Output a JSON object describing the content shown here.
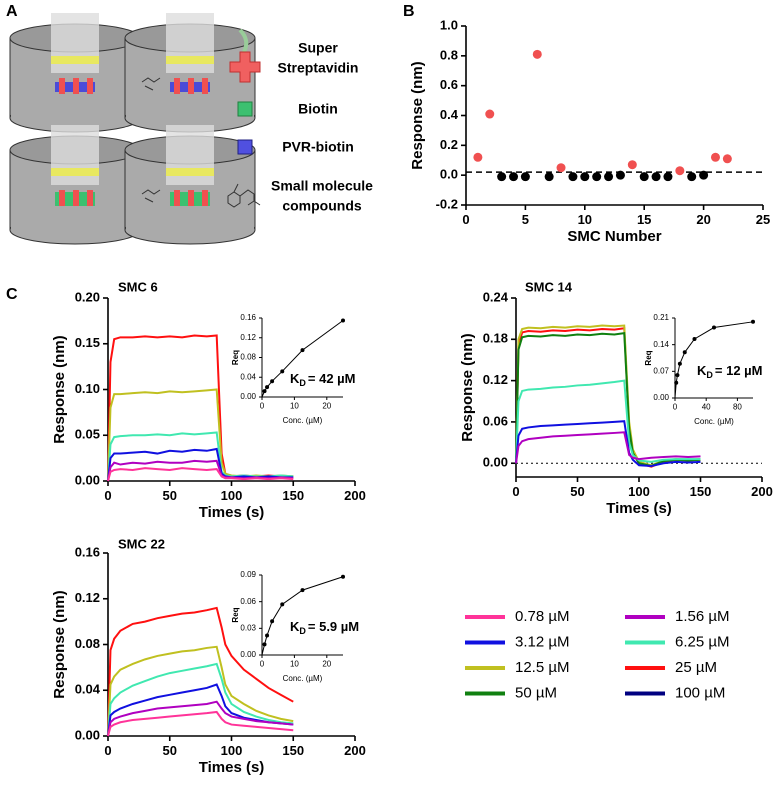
{
  "panels": [
    "A",
    "B",
    "C"
  ],
  "diagram": {
    "labels": [
      "Super",
      "Streptavidin",
      "Biotin",
      "PVR-biotin",
      "Small molecule",
      "compounds"
    ]
  },
  "legend": [
    {
      "name": "0.78 µM",
      "color": "#ff3399"
    },
    {
      "name": "1.56 µM",
      "color": "#b000c0"
    },
    {
      "name": "3.12 µM",
      "color": "#1010e0"
    },
    {
      "name": "6.25 µM",
      "color": "#40e8b0"
    },
    {
      "name": "12.5 µM",
      "color": "#c0c020"
    },
    {
      "name": "25 µM",
      "color": "#ff1010"
    },
    {
      "name": "50 µM",
      "color": "#108010"
    },
    {
      "name": "100 µM",
      "color": "#000080"
    }
  ],
  "chart_data": [
    {
      "type": "scatter",
      "xlabel": "SMC Number",
      "ylabel": "Response (nm)",
      "x": [
        1,
        2,
        3,
        4,
        5,
        6,
        7,
        8,
        9,
        10,
        11,
        12,
        13,
        14,
        15,
        16,
        17,
        18,
        19,
        20,
        21,
        22
      ],
      "values": [
        0.12,
        0.41,
        -0.01,
        -0.01,
        -0.01,
        0.81,
        -0.01,
        0.05,
        -0.01,
        -0.01,
        -0.01,
        -0.01,
        0.0,
        0.07,
        -0.01,
        -0.01,
        -0.01,
        0.03,
        -0.01,
        0.0,
        0.12,
        0.11
      ],
      "colors": [
        "#f05050",
        "#f05050",
        "#000000",
        "#000000",
        "#000000",
        "#f05050",
        "#000000",
        "#f05050",
        "#000000",
        "#000000",
        "#000000",
        "#000000",
        "#000000",
        "#f05050",
        "#000000",
        "#000000",
        "#000000",
        "#f05050",
        "#000000",
        "#000000",
        "#f05050",
        "#f05050"
      ],
      "xlim": [
        0,
        25
      ],
      "xticks": [
        0,
        5,
        10,
        15,
        20,
        25
      ],
      "ylim": [
        -0.2,
        1.0
      ],
      "yticks": [
        -0.2,
        {
          "value": 0,
          "label": "0.0"
        },
        0.2,
        0.4,
        0.6,
        0.8,
        {
          "value": 1.0,
          "label": "1.0"
        }
      ],
      "threshold": 0.02
    },
    {
      "type": "line",
      "title": "SMC 6",
      "xlabel": "Times (s)",
      "ylabel": "Response (nm)",
      "x": [
        0,
        2,
        5,
        10,
        20,
        30,
        40,
        50,
        60,
        70,
        80,
        88,
        92,
        95,
        100,
        110,
        120,
        130,
        140,
        150
      ],
      "series": [
        {
          "color": "#ff1010",
          "values": [
            0,
            0.13,
            0.155,
            0.157,
            0.157,
            0.158,
            0.157,
            0.158,
            0.157,
            0.159,
            0.158,
            0.159,
            0.03,
            0.008,
            0.005,
            0.006,
            0.005,
            0.006,
            0.005,
            0.005
          ]
        },
        {
          "color": "#c0c020",
          "values": [
            0,
            0.08,
            0.095,
            0.095,
            0.096,
            0.097,
            0.096,
            0.098,
            0.097,
            0.098,
            0.099,
            0.1,
            0.02,
            0.008,
            0.006,
            0.005,
            0.006,
            0.005,
            0.006,
            0.005
          ]
        },
        {
          "color": "#40e8b0",
          "values": [
            0,
            0.04,
            0.048,
            0.049,
            0.05,
            0.05,
            0.051,
            0.05,
            0.052,
            0.051,
            0.052,
            0.053,
            0.01,
            0.006,
            0.005,
            0.006,
            0.005,
            0.005,
            0.006,
            0.005
          ]
        },
        {
          "color": "#1010e0",
          "values": [
            0,
            0.025,
            0.03,
            0.03,
            0.031,
            0.032,
            0.03,
            0.033,
            0.032,
            0.034,
            0.033,
            0.035,
            0.008,
            0.005,
            0.004,
            0.005,
            0.004,
            0.005,
            0.004,
            0.004
          ]
        },
        {
          "color": "#b000c0",
          "values": [
            0,
            0.015,
            0.02,
            0.018,
            0.02,
            0.019,
            0.021,
            0.02,
            0.02,
            0.022,
            0.021,
            0.022,
            0.006,
            0.004,
            0.004,
            0.003,
            0.004,
            0.003,
            0.004,
            0.003
          ]
        },
        {
          "color": "#ff3399",
          "values": [
            0,
            0.01,
            0.012,
            0.013,
            0.012,
            0.014,
            0.013,
            0.012,
            0.014,
            0.013,
            0.012,
            0.013,
            0.005,
            0.003,
            0.003,
            0.002,
            0.003,
            0.002,
            0.003,
            0.002
          ]
        }
      ],
      "xlim": [
        0,
        200
      ],
      "xticks": [
        0,
        50,
        100,
        150,
        200
      ],
      "ylim": [
        0,
        0.2
      ],
      "yticks": [
        {
          "value": 0,
          "label": "0.00"
        },
        0.05,
        {
          "value": 0.1,
          "label": "0.10"
        },
        0.15,
        {
          "value": 0.2,
          "label": "0.20"
        }
      ],
      "annotation": {
        "main": "K",
        "sub": "D",
        "rest": "= 42 µM"
      },
      "inset": {
        "xlabel": "Conc. (µM)",
        "ylabel": "Req",
        "color": "#000000",
        "x": [
          0.78,
          1.56,
          3.12,
          6.25,
          12.5,
          25
        ],
        "values": [
          0.012,
          0.02,
          0.032,
          0.052,
          0.095,
          0.155
        ],
        "xlim": [
          0,
          25
        ],
        "xticks": [
          0,
          10,
          20
        ],
        "ylim": [
          0,
          0.16
        ],
        "yticks": [
          {
            "value": 0,
            "label": "0.00"
          },
          0.04,
          0.08,
          0.12,
          0.16
        ]
      }
    },
    {
      "type": "line",
      "title": "SMC 14",
      "xlabel": "Times (s)",
      "ylabel": "Response (nm)",
      "x": [
        0,
        2,
        5,
        10,
        20,
        30,
        40,
        50,
        60,
        70,
        80,
        88,
        92,
        95,
        100,
        110,
        120,
        130,
        140,
        150
      ],
      "series": [
        {
          "color": "#ff1010",
          "values": [
            0,
            0.17,
            0.19,
            0.192,
            0.191,
            0.193,
            0.192,
            0.194,
            0.193,
            0.195,
            0.194,
            0.196,
            0.05,
            0.015,
            0.0,
            -0.005,
            0.002,
            0.005,
            0.004,
            0.005
          ]
        },
        {
          "color": "#c0c020",
          "values": [
            0,
            0.18,
            0.195,
            0.197,
            0.196,
            0.198,
            0.197,
            0.199,
            0.198,
            0.2,
            0.199,
            0.2,
            0.06,
            0.02,
            0.002,
            -0.003,
            0.004,
            0.006,
            0.005,
            0.006
          ]
        },
        {
          "color": "#108010",
          "values": [
            0,
            0.165,
            0.183,
            0.185,
            0.184,
            0.186,
            0.185,
            0.187,
            0.186,
            0.188,
            0.187,
            0.189,
            0.05,
            0.015,
            0.0,
            -0.004,
            0.003,
            0.005,
            0.004,
            0.005
          ]
        },
        {
          "color": "#40e8b0",
          "values": [
            0,
            0.09,
            0.105,
            0.107,
            0.108,
            0.11,
            0.111,
            0.113,
            0.114,
            0.116,
            0.118,
            0.12,
            0.03,
            0.012,
            0.004,
            0.002,
            0.005,
            0.006,
            0.006,
            0.006
          ]
        },
        {
          "color": "#1010e0",
          "values": [
            0,
            0.04,
            0.05,
            0.052,
            0.054,
            0.055,
            0.056,
            0.057,
            0.058,
            0.059,
            0.06,
            0.061,
            0.015,
            0.005,
            -0.003,
            -0.004,
            0.0,
            0.002,
            0.001,
            0.002
          ]
        },
        {
          "color": "#b000c0",
          "values": [
            0,
            0.025,
            0.032,
            0.035,
            0.037,
            0.039,
            0.04,
            0.041,
            0.042,
            0.043,
            0.044,
            0.045,
            0.012,
            0.008,
            0.006,
            0.008,
            0.009,
            0.01,
            0.009,
            0.01
          ]
        }
      ],
      "xlim": [
        0,
        200
      ],
      "xticks": [
        0,
        50,
        100,
        150,
        200
      ],
      "ylim": [
        -0.02,
        0.24
      ],
      "yticks": [
        {
          "value": 0,
          "label": "0.00"
        },
        0.06,
        {
          "value": 0.12,
          "label": "0.12"
        },
        0.18,
        0.24
      ],
      "zero_line": true,
      "annotation": {
        "main": "K",
        "sub": "D",
        "rest": "= 12 µM"
      },
      "inset": {
        "xlabel": "Conc. (µM)",
        "ylabel": "Req",
        "color": "#000000",
        "x": [
          1.56,
          3.12,
          6.25,
          12.5,
          25,
          50,
          100
        ],
        "values": [
          0.04,
          0.06,
          0.09,
          0.12,
          0.155,
          0.185,
          0.2
        ],
        "xlim": [
          0,
          100
        ],
        "xticks": [
          0,
          40,
          80
        ],
        "ylim": [
          0,
          0.21
        ],
        "yticks": [
          {
            "value": 0,
            "label": "0.00"
          },
          0.07,
          0.14,
          0.21
        ]
      }
    },
    {
      "type": "line",
      "title": "SMC 22",
      "xlabel": "Times (s)",
      "ylabel": "Response (nm)",
      "x": [
        0,
        2,
        5,
        10,
        20,
        30,
        40,
        50,
        60,
        70,
        80,
        88,
        92,
        95,
        100,
        110,
        120,
        130,
        140,
        150
      ],
      "series": [
        {
          "color": "#ff1010",
          "values": [
            0,
            0.075,
            0.085,
            0.092,
            0.098,
            0.1,
            0.103,
            0.105,
            0.107,
            0.108,
            0.11,
            0.112,
            0.095,
            0.08,
            0.07,
            0.058,
            0.05,
            0.042,
            0.036,
            0.03
          ]
        },
        {
          "color": "#c0c020",
          "values": [
            0,
            0.045,
            0.052,
            0.058,
            0.063,
            0.067,
            0.07,
            0.072,
            0.074,
            0.075,
            0.077,
            0.078,
            0.06,
            0.045,
            0.035,
            0.028,
            0.022,
            0.018,
            0.015,
            0.013
          ]
        },
        {
          "color": "#40e8b0",
          "values": [
            0,
            0.028,
            0.033,
            0.038,
            0.044,
            0.048,
            0.052,
            0.055,
            0.057,
            0.059,
            0.061,
            0.063,
            0.05,
            0.038,
            0.028,
            0.021,
            0.017,
            0.014,
            0.012,
            0.011
          ]
        },
        {
          "color": "#1010e0",
          "values": [
            0,
            0.018,
            0.021,
            0.024,
            0.028,
            0.031,
            0.034,
            0.036,
            0.038,
            0.04,
            0.042,
            0.045,
            0.035,
            0.026,
            0.02,
            0.016,
            0.014,
            0.012,
            0.011,
            0.01
          ]
        },
        {
          "color": "#b000c0",
          "values": [
            0,
            0.012,
            0.015,
            0.017,
            0.02,
            0.022,
            0.024,
            0.025,
            0.026,
            0.027,
            0.028,
            0.03,
            0.024,
            0.02,
            0.017,
            0.015,
            0.013,
            0.012,
            0.011,
            0.01
          ]
        },
        {
          "color": "#ff3399",
          "values": [
            0,
            0.008,
            0.01,
            0.012,
            0.014,
            0.015,
            0.016,
            0.017,
            0.018,
            0.019,
            0.02,
            0.021,
            0.015,
            0.012,
            0.01,
            0.009,
            0.008,
            0.007,
            0.006,
            0.005
          ]
        }
      ],
      "xlim": [
        0,
        200
      ],
      "xticks": [
        0,
        50,
        100,
        150,
        200
      ],
      "ylim": [
        0,
        0.16
      ],
      "yticks": [
        {
          "value": 0,
          "label": "0.00"
        },
        0.04,
        0.08,
        0.12,
        0.16
      ],
      "annotation": {
        "main": "K",
        "sub": "D",
        "rest": "= 5.9 µM"
      },
      "inset": {
        "xlabel": "Conc. (µM)",
        "ylabel": "Req",
        "color": "#000000",
        "x": [
          0.78,
          1.56,
          3.12,
          6.25,
          12.5,
          25
        ],
        "values": [
          0.012,
          0.022,
          0.038,
          0.057,
          0.073,
          0.088
        ],
        "xlim": [
          0,
          25
        ],
        "xticks": [
          0,
          10,
          20
        ],
        "ylim": [
          0,
          0.09
        ],
        "yticks": [
          {
            "value": 0,
            "label": "0.00"
          },
          0.03,
          0.06,
          0.09
        ]
      }
    }
  ]
}
